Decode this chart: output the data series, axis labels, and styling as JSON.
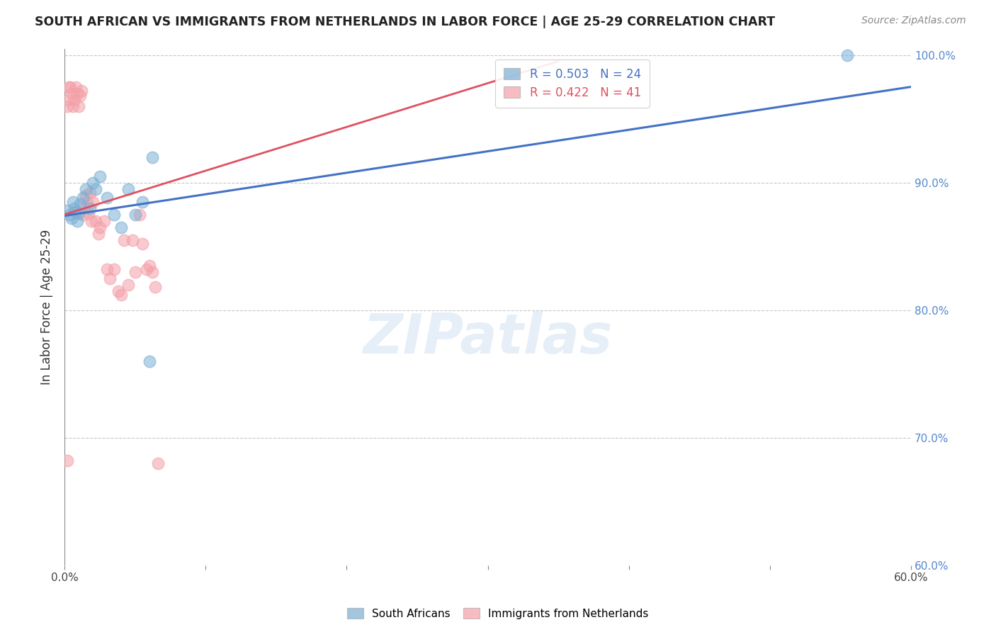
{
  "title": "SOUTH AFRICAN VS IMMIGRANTS FROM NETHERLANDS IN LABOR FORCE | AGE 25-29 CORRELATION CHART",
  "source": "Source: ZipAtlas.com",
  "ylabel": "In Labor Force | Age 25-29",
  "xlim": [
    0.0,
    0.6
  ],
  "ylim": [
    0.6,
    1.005
  ],
  "ytick_labels": [
    "100.0%",
    "90.0%",
    "80.0%",
    "70.0%",
    "60.0%"
  ],
  "ytick_vals": [
    1.0,
    0.9,
    0.8,
    0.7,
    0.6
  ],
  "blue_R": 0.503,
  "blue_N": 24,
  "pink_R": 0.422,
  "pink_N": 41,
  "blue_color": "#7BAFD4",
  "pink_color": "#F4A0A8",
  "blue_line_color": "#4472C4",
  "pink_line_color": "#E05060",
  "grid_color": "#C8C8C8",
  "right_axis_color": "#5588CC",
  "legend_label_blue": "South Africans",
  "legend_label_pink": "Immigrants from Netherlands",
  "blue_x": [
    0.002,
    0.004,
    0.005,
    0.006,
    0.007,
    0.008,
    0.009,
    0.01,
    0.011,
    0.013,
    0.015,
    0.018,
    0.02,
    0.022,
    0.025,
    0.03,
    0.035,
    0.04,
    0.045,
    0.05,
    0.055,
    0.06,
    0.062,
    0.555
  ],
  "blue_y": [
    0.878,
    0.875,
    0.872,
    0.885,
    0.88,
    0.877,
    0.87,
    0.876,
    0.883,
    0.888,
    0.895,
    0.88,
    0.9,
    0.895,
    0.905,
    0.888,
    0.875,
    0.865,
    0.895,
    0.875,
    0.885,
    0.76,
    0.92,
    1.0
  ],
  "pink_x": [
    0.002,
    0.003,
    0.004,
    0.005,
    0.006,
    0.007,
    0.008,
    0.009,
    0.01,
    0.011,
    0.012,
    0.013,
    0.014,
    0.015,
    0.016,
    0.017,
    0.018,
    0.019,
    0.02,
    0.022,
    0.024,
    0.025,
    0.028,
    0.03,
    0.032,
    0.035,
    0.038,
    0.04,
    0.042,
    0.045,
    0.048,
    0.05,
    0.053,
    0.055,
    0.058,
    0.06,
    0.062,
    0.064,
    0.066,
    0.002,
    0.003
  ],
  "pink_y": [
    0.96,
    0.965,
    0.975,
    0.97,
    0.96,
    0.965,
    0.975,
    0.97,
    0.96,
    0.968,
    0.972,
    0.875,
    0.88,
    0.89,
    0.885,
    0.876,
    0.892,
    0.87,
    0.885,
    0.87,
    0.86,
    0.865,
    0.87,
    0.832,
    0.825,
    0.832,
    0.815,
    0.812,
    0.855,
    0.82,
    0.855,
    0.83,
    0.875,
    0.852,
    0.832,
    0.835,
    0.83,
    0.818,
    0.68,
    0.682,
    0.975
  ],
  "blue_trendline": [
    0.0,
    0.6,
    0.874,
    0.975
  ],
  "pink_trendline": [
    0.0,
    0.35,
    0.875,
    0.995
  ],
  "watermark_text": "ZIPatlas",
  "background_color": "#FFFFFF"
}
